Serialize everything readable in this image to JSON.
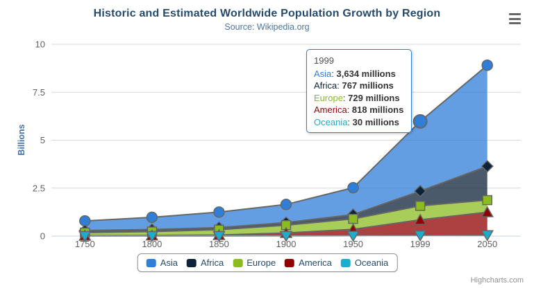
{
  "chart": {
    "title": "Historic and Estimated Worldwide Population Growth by Region",
    "subtitle": "Source: Wikipedia.org",
    "y_axis_title": "Billions",
    "credits": "Highcharts.com"
  },
  "chart_data": {
    "type": "area",
    "stacking": "normal",
    "title": "Historic and Estimated Worldwide Population Growth by Region",
    "subtitle": "Source: Wikipedia.org",
    "xlabel": "",
    "ylabel": "Billions",
    "categories": [
      "1750",
      "1800",
      "1850",
      "1900",
      "1950",
      "1999",
      "2050"
    ],
    "series": [
      {
        "name": "Asia",
        "color": "#2f7ed8",
        "marker": "circle",
        "values": [
          502,
          635,
          809,
          947,
          1402,
          3634,
          5268
        ]
      },
      {
        "name": "Africa",
        "color": "#0d233a",
        "marker": "diamond",
        "values": [
          106,
          107,
          111,
          133,
          221,
          767,
          1766
        ]
      },
      {
        "name": "Europe",
        "color": "#8bbc21",
        "marker": "square",
        "values": [
          163,
          203,
          276,
          408,
          547,
          729,
          628
        ]
      },
      {
        "name": "America",
        "color": "#910000",
        "marker": "triangle",
        "values": [
          18,
          31,
          54,
          156,
          339,
          818,
          1201
        ]
      },
      {
        "name": "Oceania",
        "color": "#1aadce",
        "marker": "triangle-down",
        "values": [
          2,
          2,
          2,
          6,
          13,
          30,
          46
        ]
      }
    ],
    "value_unit": "millions",
    "y_ticks": [
      0,
      2.5,
      5,
      7.5,
      10
    ],
    "ylim": [
      0,
      10
    ],
    "grid": true,
    "legend_position": "bottom",
    "line_color": "#666666",
    "grid_color": "#d8d8d8",
    "axis_line_color": "#c0d0e0",
    "axis_label_color": "#606060",
    "fill_opacity": 0.75,
    "hover": {
      "category": "1999",
      "series": "Asia"
    }
  },
  "tooltip": {
    "header": "1999",
    "separator": ": ",
    "rows": [
      {
        "label": "Asia",
        "color": "#2f7ed8",
        "value": "3,634",
        "suffix": "millions"
      },
      {
        "label": "Africa",
        "color": "#0d233a",
        "value": "767",
        "suffix": "millions"
      },
      {
        "label": "Europe",
        "color": "#8bbc21",
        "value": "729",
        "suffix": "millions"
      },
      {
        "label": "America",
        "color": "#910000",
        "value": "818",
        "suffix": "millions"
      },
      {
        "label": "Oceania",
        "color": "#1aadce",
        "value": "30",
        "suffix": "millions"
      }
    ]
  },
  "legend": {
    "items": [
      {
        "label": "Asia",
        "color": "#2f7ed8"
      },
      {
        "label": "Africa",
        "color": "#0d233a"
      },
      {
        "label": "Europe",
        "color": "#8bbc21"
      },
      {
        "label": "America",
        "color": "#910000"
      },
      {
        "label": "Oceania",
        "color": "#1aadce"
      }
    ]
  }
}
